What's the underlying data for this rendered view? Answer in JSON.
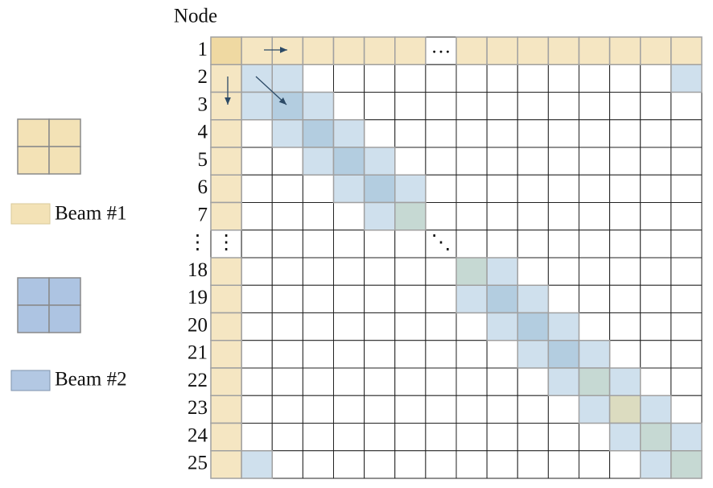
{
  "header": "Node",
  "rows": [
    "1",
    "2",
    "3",
    "4",
    "5",
    "6",
    "7",
    "⋮",
    "18",
    "19",
    "20",
    "21",
    "22",
    "23",
    "24",
    "25"
  ],
  "cells": {
    "row_ellipsis": "…",
    "column_ellipsis": "⋮",
    "diagonal_ellipsis": "⋱"
  },
  "legend": [
    "Beam #1",
    "Beam #2"
  ]
}
